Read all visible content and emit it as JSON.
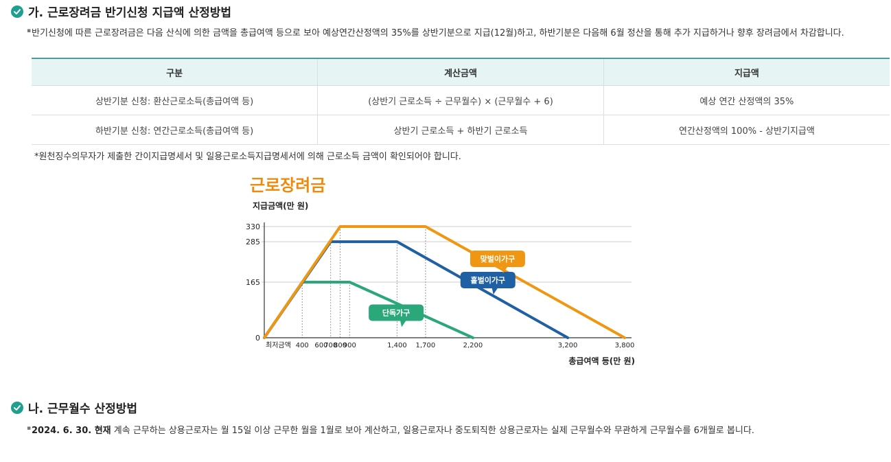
{
  "section1": {
    "title": "가. 근로장려금 반기신청 지급액 산정방법",
    "bullet": "반기신청에 따른 근로장려금은 다음 산식에 의한 금액을 총급여액 등으로 보아 예상연간산정액의 35%를 상반기분으로 지급(12월)하고, 하반기분은 다음해 6월 정산을 통해 추가 지급하거나 향후 장려금에서 차감합니다."
  },
  "table": {
    "headers": [
      "구분",
      "계산금액",
      "지급액"
    ],
    "rows": [
      [
        "상반기분 신청: 환산근로소득(총급여액 등)",
        "(상반기 근로소득 ÷ 근무월수) × (근무월수 + 6)",
        "예상 연간 산정액의 35%"
      ],
      [
        "하반기분 신청: 연간근로소득(총급여액 등)",
        "상반기 근로소득 + 하반기 근로소득",
        "연간산정액의 100% - 상반기지급액"
      ]
    ]
  },
  "note": "*원천징수의무자가 제출한 간이지급명세서 및 일용근로소득지급명세서에 의해 근로소득 금액이 확인되어야 합니다.",
  "chart_data": {
    "type": "line",
    "title": "근로장려금",
    "ylabel": "지급금액(만 원)",
    "xlabel": "총급여액 등(만 원)",
    "x_ticks": [
      "최저금액",
      "400",
      "600",
      "700",
      "800",
      "900",
      "1,400",
      "1,700",
      "2,200",
      "3,200",
      "3,800"
    ],
    "y_ticks": [
      "0",
      "165",
      "285",
      "330"
    ],
    "xlim": [
      0,
      3800
    ],
    "ylim": [
      0,
      330
    ],
    "series": [
      {
        "name": "단독가구",
        "color": "#2aa87a",
        "x": [
          0,
          400,
          900,
          2200
        ],
        "y": [
          0,
          165,
          165,
          0
        ]
      },
      {
        "name": "홑벌이가구",
        "color": "#1f5fa3",
        "x": [
          0,
          700,
          1400,
          3200
        ],
        "y": [
          0,
          285,
          285,
          0
        ]
      },
      {
        "name": "맞벌이가구",
        "color": "#ef9712",
        "x": [
          0,
          800,
          1700,
          3800
        ],
        "y": [
          0,
          330,
          330,
          0
        ]
      }
    ],
    "colors": {
      "title": "#ef8a0c",
      "grid": "#cccccc",
      "guide": "#999999",
      "axis": "#333333"
    }
  },
  "section2": {
    "title": "나. 근무월수 산정방법",
    "bullet_bold": "2024. 6. 30. 현재",
    "bullet_rest": " 계속 근무하는 상용근로자는 월 15일 이상 근무한 월을 1월로 보아 계산하고, 일용근로자나 중도퇴직한 상용근로자는 실제 근무월수와 무관하게 근무월수를 6개월로 봅니다."
  }
}
